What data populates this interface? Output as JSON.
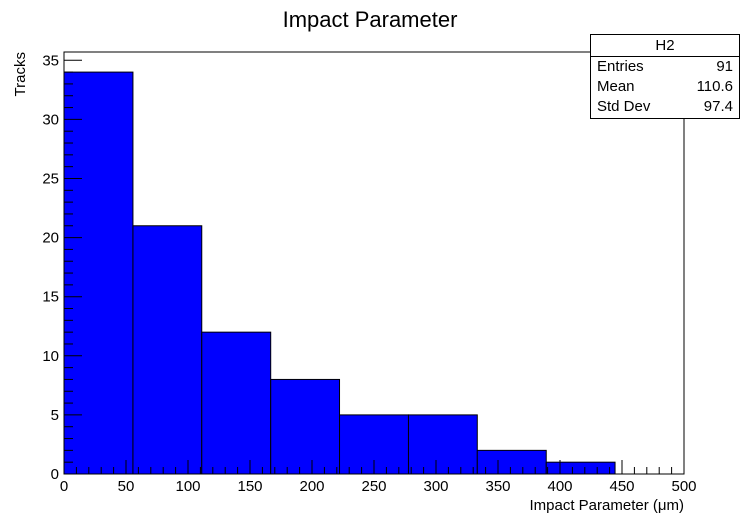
{
  "chart_data": {
    "type": "bar",
    "title": "Impact Parameter",
    "xlabel": "Impact Parameter (μm)",
    "ylabel": "Tracks",
    "bin_edges": [
      0,
      55.6,
      111.1,
      166.7,
      222.2,
      277.8,
      333.3,
      388.9,
      444.4,
      500
    ],
    "values": [
      34,
      21,
      12,
      8,
      5,
      5,
      2,
      1,
      0
    ],
    "xlim": [
      0,
      500
    ],
    "ylim": [
      0,
      35.7
    ],
    "x_ticks": [
      0,
      50,
      100,
      150,
      200,
      250,
      300,
      350,
      400,
      450,
      500
    ],
    "y_ticks": [
      0,
      5,
      10,
      15,
      20,
      25,
      30,
      35
    ],
    "bar_color": "#0000ff",
    "grid": false,
    "legend": "none"
  },
  "stats_box": {
    "name": "H2",
    "rows": [
      {
        "label": "Entries",
        "value": "91"
      },
      {
        "label": "Mean",
        "value": "110.6"
      },
      {
        "label": "Std Dev",
        "value": "97.4"
      }
    ]
  }
}
